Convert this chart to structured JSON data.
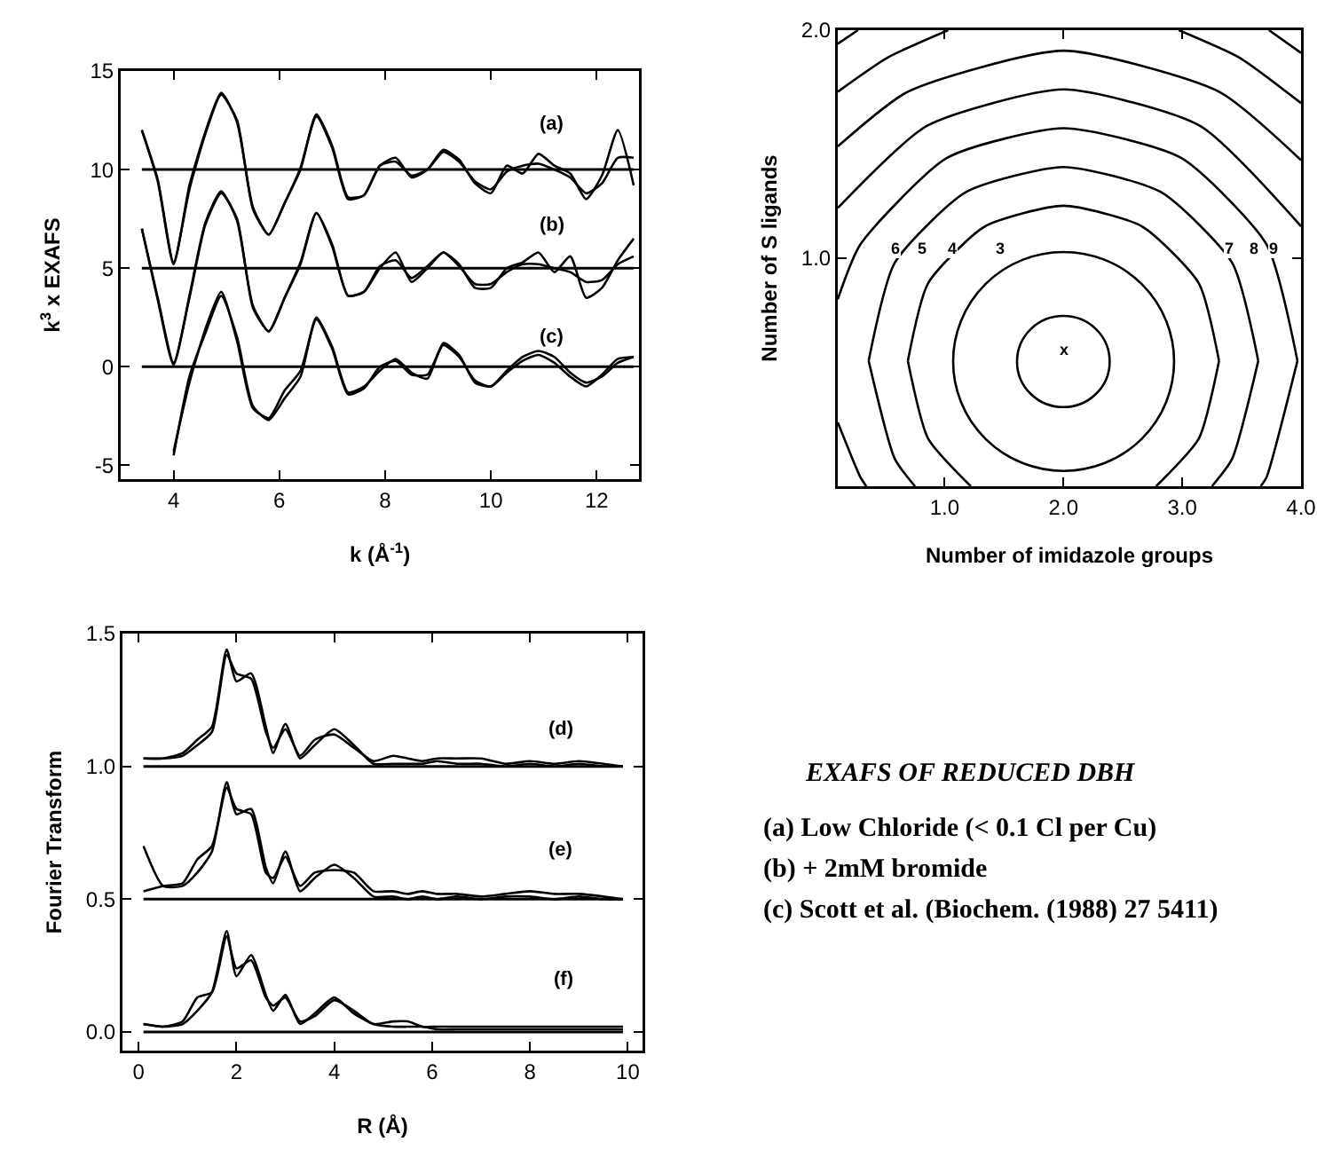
{
  "chart_data": [
    {
      "type": "line",
      "xlabel": "k (Å$^{-1}$)",
      "ylabel": "k$^{3}$ x EXAFS",
      "xlim": [
        3.0,
        12.8
      ],
      "ylim": [
        -5.7,
        15
      ],
      "xticks": [
        4,
        6,
        8,
        10,
        12
      ],
      "yticks": [
        -5,
        0,
        5,
        10,
        15
      ],
      "x": [
        3.4,
        3.7,
        4.0,
        4.3,
        4.6,
        4.9,
        5.2,
        5.5,
        5.8,
        6.1,
        6.4,
        6.7,
        7.0,
        7.3,
        7.6,
        7.9,
        8.2,
        8.5,
        8.8,
        9.1,
        9.4,
        9.7,
        10.0,
        10.3,
        10.6,
        10.9,
        11.2,
        11.5,
        11.8,
        12.1,
        12.4,
        12.7
      ],
      "series": [
        {
          "color": "#000000",
          "values": [
            12,
            9.5,
            5.3,
            9,
            11.8,
            13.8,
            12.5,
            8,
            6.7,
            8.3,
            10,
            12.8,
            11.2,
            8.6,
            8.7,
            10.2,
            10.6,
            9.6,
            10,
            11,
            10.5,
            9.3,
            8.8,
            10.2,
            9.8,
            10.8,
            10.2,
            9.8,
            8.5,
            9.7,
            12,
            9.2
          ]
        },
        {
          "color": "#000000",
          "values": [
            12,
            9.4,
            5.2,
            9.2,
            11.9,
            13.9,
            12.4,
            8.1,
            6.7,
            8.3,
            10.1,
            12.7,
            11.1,
            8.5,
            8.7,
            10.2,
            10.4,
            9.7,
            10,
            10.9,
            10.4,
            9.4,
            9,
            9.9,
            10.2,
            10.3,
            10,
            9.6,
            8.8,
            9.3,
            10.6,
            10.6
          ]
        },
        {
          "color": "#000000",
          "values": [
            7,
            3.5,
            0.2,
            3.5,
            7.2,
            8.8,
            7.5,
            3,
            1.8,
            3.5,
            5.2,
            7.8,
            6.2,
            3.6,
            3.8,
            5,
            5.8,
            4.3,
            5,
            5.8,
            5.2,
            4,
            4,
            5,
            5.3,
            5.8,
            4.8,
            5.6,
            3.5,
            4,
            5.4,
            6.5
          ]
        },
        {
          "color": "#000000",
          "values": [
            7,
            3.4,
            0.1,
            3.6,
            7.3,
            8.9,
            7.4,
            3.1,
            1.8,
            3.5,
            5.3,
            7.8,
            6.1,
            3.6,
            3.8,
            5.1,
            5.4,
            4.5,
            5.1,
            5.8,
            5.1,
            4.2,
            4.2,
            4.8,
            5.2,
            5.2,
            5,
            4.8,
            4.3,
            4.4,
            5.2,
            5.6
          ]
        },
        {
          "color": "#000000",
          "values": [
            null,
            null,
            -4.5,
            -0.5,
            1.7,
            3.6,
            1.5,
            -2,
            -2.7,
            -1.6,
            -0.5,
            2.5,
            1,
            -1.3,
            -1,
            -0.2,
            0.4,
            -0.3,
            -0.6,
            1.2,
            0.6,
            -0.8,
            -1,
            -0.3,
            0.3,
            0.6,
            0.2,
            -0.5,
            -1,
            -0.4,
            0.4,
            0.5
          ]
        },
        {
          "color": "#000000",
          "values": [
            null,
            null,
            -4.3,
            -0.8,
            1.9,
            3.8,
            1.3,
            -2.1,
            -2.6,
            -1.2,
            -0.2,
            2.4,
            0.9,
            -1.4,
            -1.1,
            0,
            0.3,
            -0.4,
            -0.4,
            1.1,
            0.5,
            -0.7,
            -1,
            -0.2,
            0.5,
            0.8,
            0.5,
            -0.3,
            -0.8,
            -0.5,
            0.2,
            0.5
          ]
        }
      ],
      "ref_lines": [
        {
          "axis": "y",
          "value": 10,
          "color": "#000000"
        },
        {
          "axis": "y",
          "value": 5,
          "color": "#000000"
        },
        {
          "axis": "y",
          "value": 0,
          "color": "#000000"
        }
      ],
      "annotations": [
        "(a)",
        "(b)",
        "(c)"
      ]
    },
    {
      "type": "line",
      "xlabel": "Number of imidazole groups",
      "ylabel": "Number of S ligands",
      "xlim": [
        0.1,
        4.0
      ],
      "ylim": [
        0,
        2
      ],
      "xticks": [
        {
          "value": 1,
          "label": "1.0"
        },
        {
          "value": 2,
          "label": "2.0"
        },
        {
          "value": 3,
          "label": "3.0"
        },
        {
          "value": 4,
          "label": "4.0"
        }
      ],
      "yticks": [
        {
          "value": 0,
          "label": null
        },
        {
          "value": 1,
          "label": "1.0"
        },
        {
          "value": 2,
          "label": "2.0"
        }
      ],
      "series": [
        {
          "color": "#000000",
          "x": [
            0.69,
            0.86,
            1.34,
            2.0,
            2.66,
            3.14,
            3.31
          ],
          "values": [
            0.55,
            0.89,
            1.14,
            1.23,
            1.14,
            0.89,
            0.55
          ]
        },
        {
          "color": "#000000",
          "x": [
            0.69,
            0.86,
            1.22,
            null,
            2.78,
            3.14,
            3.31
          ],
          "values": [
            0.55,
            0.21,
            0,
            null,
            0,
            0.21,
            0.55
          ]
        },
        {
          "color": "#000000",
          "x": [
            0.36,
            0.58,
            1.18,
            2.0,
            2.82,
            3.42,
            3.64
          ],
          "values": [
            0.55,
            0.98,
            1.29,
            1.4,
            1.29,
            0.98,
            0.55
          ]
        },
        {
          "color": "#000000",
          "x": [
            0.36,
            0.58,
            0.75,
            null,
            3.25,
            3.42,
            3.64
          ],
          "values": [
            0.55,
            0.12,
            0,
            null,
            0,
            0.12,
            0.55
          ]
        },
        {
          "color": "#000000",
          "x": [
            0.1,
            0.29,
            1.02,
            2.0,
            2.99,
            3.71,
            3.97
          ],
          "values": [
            0.82,
            1.06,
            1.44,
            1.57,
            1.44,
            1.06,
            0.55
          ]
        },
        {
          "color": "#000000",
          "x": [
            0.1,
            0.29,
            0.34,
            null,
            3.66,
            3.71,
            3.97
          ],
          "values": [
            0.28,
            0.04,
            0,
            null,
            0,
            0.04,
            0.55
          ]
        },
        {
          "color": "#000000",
          "x": [
            0.1,
            0.85,
            2.0,
            3.15,
            4.0
          ],
          "values": [
            1.22,
            1.58,
            1.74,
            1.58,
            1.14
          ]
        },
        {
          "color": "#000000",
          "x": [
            0.1,
            0.69,
            2.0,
            3.31,
            4.0
          ],
          "values": [
            1.49,
            1.73,
            1.91,
            1.73,
            1.43
          ]
        },
        {
          "color": "#000000",
          "x": [
            0.1,
            0.52,
            1.03,
            null,
            2.97,
            3.48,
            4.0
          ],
          "values": [
            1.73,
            1.88,
            2.0,
            null,
            2.0,
            1.88,
            1.68
          ]
        },
        {
          "color": "#000000",
          "x": [
            0.1,
            0.27,
            null,
            3.73,
            4.0
          ],
          "values": [
            1.94,
            2.0,
            null,
            2.0,
            1.9
          ]
        }
      ],
      "annotations": [
        "x",
        "6",
        "5",
        "4",
        "3",
        "7",
        "8",
        "9"
      ]
    },
    {
      "type": "line",
      "xlabel": "R (Å)",
      "ylabel": "Fourier Transform",
      "xlim": [
        -0.33,
        10.3
      ],
      "ylim": [
        -0.07,
        1.5
      ],
      "xticks": [
        0,
        2,
        4,
        6,
        8,
        10
      ],
      "yticks": [
        {
          "value": 0,
          "label": "0.0"
        },
        {
          "value": 0.5,
          "label": "0.5"
        },
        {
          "value": 1,
          "label": "1.0"
        },
        {
          "value": 1.5,
          "label": "1.5"
        }
      ],
      "x": [
        0.1,
        0.5,
        0.9,
        1.2,
        1.5,
        1.8,
        2.0,
        2.3,
        2.6,
        2.75,
        3.0,
        3.3,
        3.6,
        4.0,
        4.4,
        4.8,
        5.2,
        5.5,
        5.8,
        6.1,
        6.5,
        7.0,
        7.5,
        8.0,
        8.5,
        9.0,
        9.5,
        9.9
      ],
      "series": [
        {
          "color": "#000000",
          "values": [
            1.03,
            1.03,
            1.05,
            1.1,
            1.15,
            1.44,
            1.32,
            1.35,
            1.15,
            1.05,
            1.16,
            1.03,
            1.08,
            1.14,
            1.08,
            1.01,
            1.01,
            1.01,
            1.01,
            1.02,
            1.01,
            1.01,
            1.0,
            1.01,
            1.0,
            1.01,
            1.0,
            1.0
          ]
        },
        {
          "color": "#000000",
          "values": [
            1.03,
            1.03,
            1.04,
            1.08,
            1.13,
            1.42,
            1.35,
            1.33,
            1.13,
            1.07,
            1.14,
            1.04,
            1.1,
            1.12,
            1.07,
            1.02,
            1.04,
            1.03,
            1.02,
            1.03,
            1.03,
            1.03,
            1.01,
            1.02,
            1.01,
            1.02,
            1.01,
            1.0
          ]
        },
        {
          "color": "#000000",
          "values": [
            0.7,
            0.55,
            0.55,
            0.6,
            0.68,
            0.94,
            0.82,
            0.84,
            0.62,
            0.56,
            0.68,
            0.53,
            0.58,
            0.63,
            0.58,
            0.51,
            0.51,
            0.5,
            0.51,
            0.5,
            0.51,
            0.5,
            0.51,
            0.51,
            0.5,
            0.51,
            0.5,
            0.5
          ]
        },
        {
          "color": "#000000",
          "values": [
            0.53,
            0.55,
            0.56,
            0.65,
            0.7,
            0.92,
            0.84,
            0.82,
            0.6,
            0.58,
            0.66,
            0.55,
            0.6,
            0.61,
            0.6,
            0.53,
            0.53,
            0.52,
            0.53,
            0.52,
            0.52,
            0.51,
            0.52,
            0.53,
            0.52,
            0.52,
            0.51,
            0.5
          ]
        },
        {
          "color": "#000000",
          "values": [
            0.03,
            0.02,
            0.03,
            0.08,
            0.15,
            0.38,
            0.21,
            0.29,
            0.14,
            0.08,
            0.14,
            0.03,
            0.07,
            0.13,
            0.07,
            0.03,
            0.02,
            0.02,
            0.02,
            0.01,
            0.01,
            0.01,
            0.01,
            0.01,
            0.01,
            0.01,
            0.01,
            0.01
          ]
        },
        {
          "color": "#000000",
          "values": [
            0.03,
            0.02,
            0.04,
            0.13,
            0.15,
            0.36,
            0.24,
            0.27,
            0.13,
            0.1,
            0.13,
            0.04,
            0.06,
            0.12,
            0.08,
            0.03,
            0.04,
            0.04,
            0.02,
            0.02,
            0.02,
            0.02,
            0.02,
            0.02,
            0.02,
            0.02,
            0.02,
            0.02
          ]
        }
      ],
      "ref_lines": [
        {
          "axis": "y",
          "value": 1,
          "color": "#000000"
        },
        {
          "axis": "y",
          "value": 0.5,
          "color": "#000000"
        },
        {
          "axis": "y",
          "value": 0,
          "color": "#000000"
        }
      ],
      "annotations": [
        "(d)",
        "(e)",
        "(f)"
      ]
    },
    {
      "type": "other",
      "title": "EXAFS OF REDUCED DBH",
      "annotations": [
        "(a) Low Chloride (< 0.1 Cl per Cu)",
        "(b) + 2mM bromide",
        "(c) Scott et al. (Biochem. (1988) 27 5411)"
      ]
    }
  ]
}
